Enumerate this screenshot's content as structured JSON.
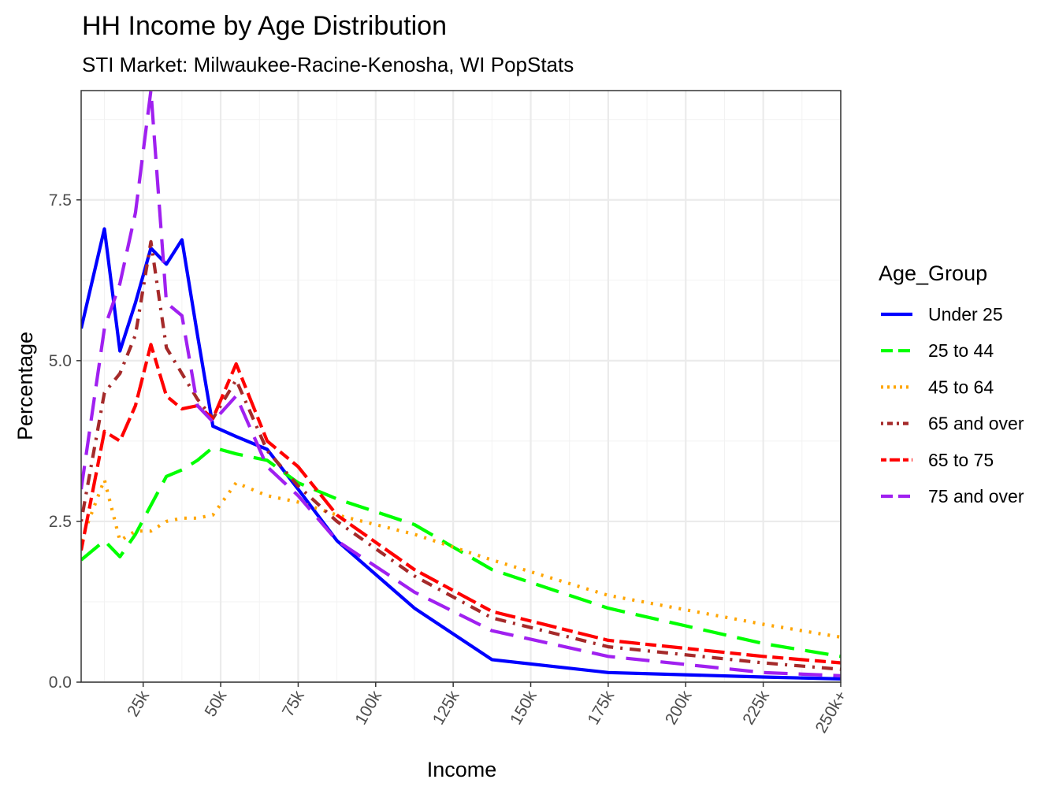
{
  "chart_data": {
    "type": "line",
    "title": "HH Income by Age Distribution",
    "subtitle": "STI Market: Milwaukee-Racine-Kenosha, WI PopStats",
    "xlabel": "Income",
    "ylabel": "Percentage",
    "xlim": [
      5,
      250
    ],
    "ylim": [
      0,
      9.2
    ],
    "x_ticks": [
      25,
      50,
      75,
      100,
      125,
      150,
      175,
      200,
      225,
      250
    ],
    "x_tick_labels": [
      "25k",
      "50k",
      "75k",
      "100k",
      "125k",
      "150k",
      "175k",
      "200k",
      "225k",
      "250k+"
    ],
    "y_ticks": [
      0,
      2.5,
      5,
      7.5
    ],
    "y_tick_labels": [
      "0.0",
      "2.5",
      "5.0",
      "7.5"
    ],
    "grid": true,
    "legend_title": "Age_Group",
    "legend_position": "right",
    "x": [
      5,
      12.5,
      17.5,
      22.5,
      27.5,
      32.5,
      37.5,
      42.5,
      47.5,
      55,
      65,
      75,
      87.5,
      112.5,
      137.5,
      175,
      225,
      250
    ],
    "series": [
      {
        "name": "Under 25",
        "color": "#0000FF",
        "dash": "solid",
        "values": [
          5.5,
          7.05,
          5.15,
          5.9,
          6.75,
          6.5,
          6.88,
          5.4,
          3.98,
          3.82,
          3.62,
          3.0,
          2.2,
          1.15,
          0.35,
          0.15,
          0.08,
          0.05
        ]
      },
      {
        "name": "25 to 44",
        "color": "#00FF00",
        "dash": "longdash",
        "values": [
          1.9,
          2.2,
          1.95,
          2.3,
          2.75,
          3.2,
          3.3,
          3.45,
          3.65,
          3.55,
          3.45,
          3.1,
          2.85,
          2.45,
          1.75,
          1.15,
          0.6,
          0.4
        ]
      },
      {
        "name": "45 to 64",
        "color": "#FFA500",
        "dash": "dotted",
        "values": [
          2.2,
          3.15,
          2.2,
          2.35,
          2.35,
          2.5,
          2.55,
          2.55,
          2.6,
          3.1,
          2.9,
          2.8,
          2.6,
          2.3,
          1.9,
          1.35,
          0.9,
          0.7
        ]
      },
      {
        "name": "65 and over",
        "color": "#A52A2A",
        "dash": "dotdash",
        "values": [
          2.5,
          4.5,
          4.8,
          5.4,
          6.85,
          5.2,
          4.8,
          4.4,
          4.1,
          4.7,
          3.6,
          3.05,
          2.5,
          1.65,
          1.0,
          0.55,
          0.3,
          0.2
        ]
      },
      {
        "name": "65 to 75",
        "color": "#FF0000",
        "dash": "twodash",
        "values": [
          2.05,
          3.9,
          3.75,
          4.3,
          5.25,
          4.45,
          4.25,
          4.3,
          4.1,
          4.95,
          3.75,
          3.35,
          2.6,
          1.75,
          1.1,
          0.65,
          0.4,
          0.3
        ]
      },
      {
        "name": "75 and over",
        "color": "#A020F0",
        "dash": "longdash",
        "values": [
          3.0,
          5.5,
          6.2,
          7.3,
          9.2,
          5.9,
          5.7,
          4.3,
          4.05,
          4.45,
          3.35,
          2.9,
          2.2,
          1.4,
          0.8,
          0.4,
          0.15,
          0.1
        ]
      }
    ]
  }
}
